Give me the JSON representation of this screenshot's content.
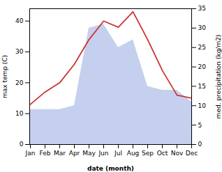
{
  "chart_data": {
    "type": "line",
    "xlabel": "date (month)",
    "ylabel": "max temp (C)",
    "y2label": "med. precipitation (kg/m2)",
    "categories": [
      "Jan",
      "Feb",
      "Mar",
      "Apr",
      "May",
      "Jun",
      "Jul",
      "Aug",
      "Sep",
      "Oct",
      "Nov",
      "Dec"
    ],
    "series": [
      {
        "type": "line",
        "color": "#cc3333",
        "values": [
          13,
          17,
          20,
          26,
          34,
          40,
          38,
          43,
          34,
          24,
          16,
          15
        ]
      },
      {
        "type": "area",
        "color": "#c5d0ee",
        "axis": "y2",
        "values": [
          9,
          9,
          9,
          10,
          30,
          31,
          25,
          27,
          15,
          14,
          14,
          11
        ]
      }
    ],
    "ylim": [
      0,
      44
    ],
    "yticks": [
      0,
      10,
      20,
      30,
      40
    ],
    "y2lim": [
      0,
      35
    ],
    "y2ticks": [
      0,
      5,
      10,
      15,
      20,
      25,
      30,
      35
    ]
  }
}
